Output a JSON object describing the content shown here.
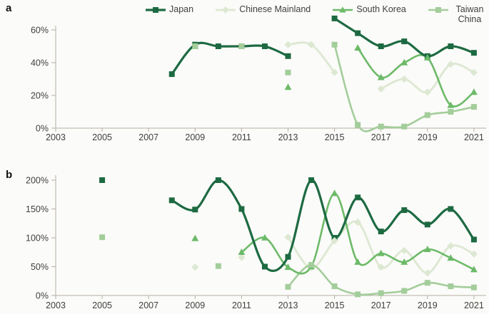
{
  "legend": {
    "items": [
      {
        "label": "Japan",
        "color": "#1d6a42",
        "marker": "square",
        "line_width": 3.2
      },
      {
        "label": "Chinese Mainland",
        "color": "#dde8d2",
        "marker": "diamond",
        "line_width": 2.8
      },
      {
        "label": "South Korea",
        "color": "#6cba68",
        "marker": "triangle",
        "line_width": 2.6
      },
      {
        "label": "Taiwan China",
        "color": "#a3cd9a",
        "marker": "square",
        "line_width": 2.6
      }
    ]
  },
  "colors": {
    "axis": "#b6afa2",
    "tick_text": "#3f3f3f",
    "panel_letter": "#111111",
    "background": "#fbfbf9"
  },
  "chart_data": [
    {
      "panel_label": "a",
      "type": "line",
      "xlim": [
        2003,
        2021
      ],
      "ylim": [
        0,
        60
      ],
      "xticks": [
        2003,
        2005,
        2007,
        2009,
        2011,
        2013,
        2015,
        2017,
        2019,
        2021
      ],
      "yticks": [
        0,
        20,
        40,
        60
      ],
      "ytick_suffix": "%",
      "grid": false,
      "legend_position": "top",
      "series": [
        {
          "name": "Japan",
          "color": "#1d6a42",
          "marker": "square",
          "line_width": 3.2,
          "segments": [
            [
              [
                2008,
                33
              ],
              [
                2009,
                51
              ],
              [
                2010,
                50
              ],
              [
                2011,
                50
              ],
              [
                2012,
                50
              ],
              [
                2013,
                44
              ]
            ],
            [
              [
                2015,
                67
              ],
              [
                2016,
                58
              ],
              [
                2017,
                50
              ],
              [
                2018,
                53
              ],
              [
                2019,
                44
              ],
              [
                2020,
                50
              ],
              [
                2021,
                46
              ]
            ]
          ]
        },
        {
          "name": "Chinese Mainland",
          "color": "#dde8d2",
          "marker": "diamond",
          "line_width": 2.8,
          "segments": [
            [
              [
                2013,
                51
              ],
              [
                2014,
                51
              ],
              [
                2015,
                34
              ]
            ],
            [
              [
                2017,
                24
              ],
              [
                2018,
                30
              ],
              [
                2019,
                22
              ],
              [
                2020,
                39
              ],
              [
                2021,
                34
              ]
            ]
          ]
        },
        {
          "name": "South Korea",
          "color": "#6cba68",
          "marker": "triangle",
          "line_width": 2.6,
          "segments": [
            [
              [
                2009,
                50
              ]
            ],
            [
              [
                2013,
                25
              ]
            ],
            [
              [
                2016,
                49
              ],
              [
                2017,
                31
              ],
              [
                2018,
                40
              ],
              [
                2019,
                43
              ],
              [
                2020,
                14
              ],
              [
                2021,
                22
              ]
            ]
          ]
        },
        {
          "name": "Taiwan China",
          "color": "#a3cd9a",
          "marker": "square",
          "line_width": 2.6,
          "segments": [
            [
              [
                2009,
                50
              ]
            ],
            [
              [
                2011,
                50
              ]
            ],
            [
              [
                2013,
                34
              ]
            ],
            [
              [
                2015,
                51
              ],
              [
                2016,
                2
              ],
              [
                2017,
                1
              ],
              [
                2018,
                1
              ],
              [
                2019,
                8
              ],
              [
                2020,
                10
              ],
              [
                2021,
                13
              ]
            ]
          ]
        }
      ]
    },
    {
      "panel_label": "b",
      "type": "line",
      "xlim": [
        2003,
        2021
      ],
      "ylim": [
        0,
        200
      ],
      "xticks": [
        2003,
        2005,
        2007,
        2009,
        2011,
        2013,
        2015,
        2017,
        2019,
        2021
      ],
      "yticks": [
        0,
        50,
        100,
        150,
        200
      ],
      "ytick_suffix": "%",
      "grid": false,
      "legend_position": "shared-top",
      "series": [
        {
          "name": "Japan",
          "color": "#1d6a42",
          "marker": "square",
          "line_width": 3.2,
          "segments": [
            [
              [
                2005,
                200
              ]
            ],
            [
              [
                2008,
                165
              ],
              [
                2009,
                149
              ],
              [
                2010,
                200
              ],
              [
                2011,
                150
              ],
              [
                2012,
                50
              ],
              [
                2013,
                67
              ],
              [
                2014,
                200
              ],
              [
                2015,
                100
              ],
              [
                2016,
                170
              ],
              [
                2017,
                111
              ],
              [
                2018,
                148
              ],
              [
                2019,
                123
              ],
              [
                2020,
                150
              ],
              [
                2021,
                97
              ]
            ]
          ]
        },
        {
          "name": "Chinese Mainland",
          "color": "#dde8d2",
          "marker": "diamond",
          "line_width": 2.8,
          "segments": [
            [
              [
                2009,
                49
              ]
            ],
            [
              [
                2011,
                66
              ]
            ],
            [
              [
                2013,
                101
              ],
              [
                2014,
                48
              ],
              [
                2015,
                95
              ],
              [
                2016,
                127
              ],
              [
                2017,
                49
              ],
              [
                2018,
                78
              ],
              [
                2019,
                39
              ],
              [
                2020,
                86
              ],
              [
                2021,
                72
              ]
            ]
          ]
        },
        {
          "name": "South Korea",
          "color": "#6cba68",
          "marker": "triangle",
          "line_width": 2.6,
          "segments": [
            [
              [
                2009,
                99
              ]
            ],
            [
              [
                2011,
                75
              ],
              [
                2012,
                100
              ],
              [
                2013,
                49
              ],
              [
                2014,
                50
              ],
              [
                2015,
                177
              ],
              [
                2016,
                58
              ],
              [
                2017,
                73
              ],
              [
                2018,
                58
              ],
              [
                2019,
                80
              ],
              [
                2020,
                65
              ],
              [
                2021,
                45
              ]
            ]
          ]
        },
        {
          "name": "Taiwan China",
          "color": "#a3cd9a",
          "marker": "square",
          "line_width": 2.6,
          "segments": [
            [
              [
                2005,
                101
              ]
            ],
            [
              [
                2010,
                51
              ]
            ],
            [
              [
                2013,
                15
              ],
              [
                2014,
                53
              ],
              [
                2015,
                16
              ],
              [
                2016,
                2
              ],
              [
                2017,
                4
              ],
              [
                2018,
                8
              ],
              [
                2019,
                22
              ],
              [
                2020,
                16
              ],
              [
                2021,
                14
              ]
            ]
          ]
        }
      ]
    }
  ]
}
